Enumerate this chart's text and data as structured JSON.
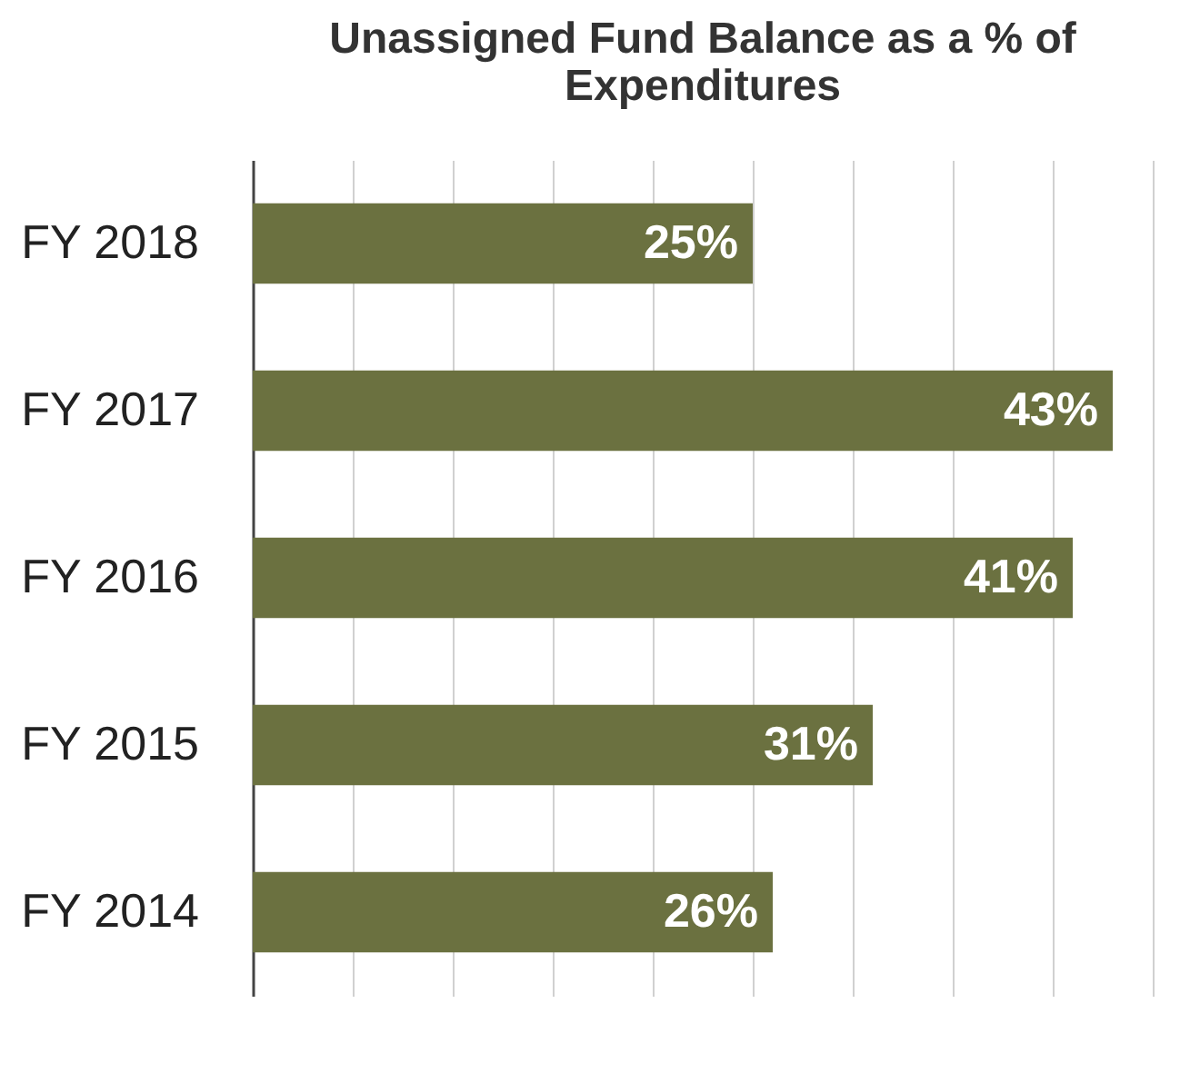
{
  "chart_data": {
    "type": "bar",
    "orientation": "horizontal",
    "title": "Unassigned Fund Balance as a % of Expenditures",
    "categories": [
      "FY 2018",
      "FY 2017",
      "FY 2016",
      "FY 2015",
      "FY 2014"
    ],
    "values": [
      25,
      43,
      41,
      31,
      26
    ],
    "value_labels": [
      "25%",
      "43%",
      "41%",
      "31%",
      "26%"
    ],
    "color": "#6b7140",
    "xlim": [
      0,
      45
    ],
    "xticks": [
      {
        "value": 0,
        "label": null
      },
      {
        "value": 5,
        "label": null
      },
      {
        "value": 10,
        "label": null
      },
      {
        "value": 15,
        "label": null
      },
      {
        "value": 20,
        "label": null
      },
      {
        "value": 25,
        "label": null
      },
      {
        "value": 30,
        "label": null
      },
      {
        "value": 35,
        "label": null
      },
      {
        "value": 40,
        "label": null
      },
      {
        "value": 45,
        "label": null
      }
    ],
    "grid": "x",
    "tick_labels": "y"
  }
}
